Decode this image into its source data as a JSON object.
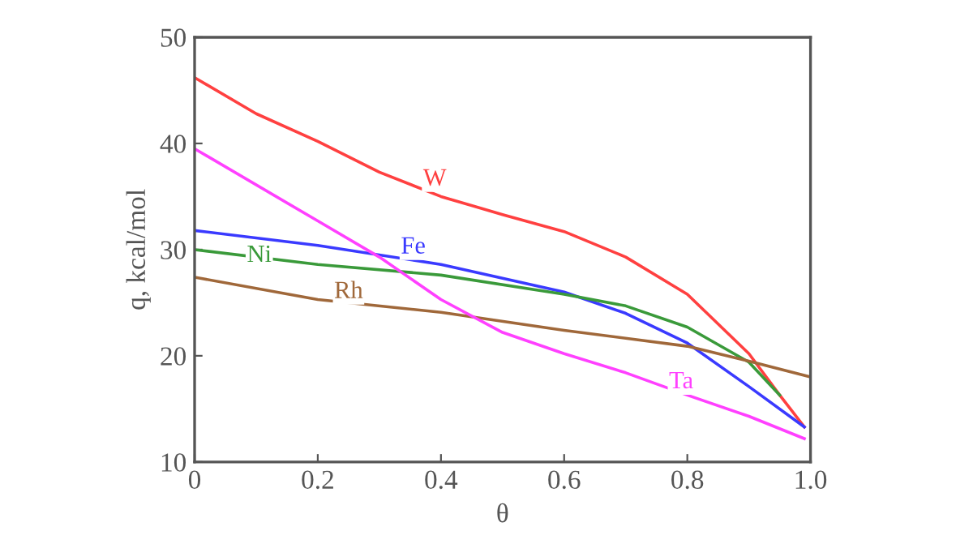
{
  "chart_data": {
    "type": "line",
    "xlabel": "θ",
    "ylabel": "q, kcal/mol",
    "xlim": [
      0,
      1.0
    ],
    "ylim": [
      10,
      50
    ],
    "xticks": [
      0,
      0.2,
      0.4,
      0.6,
      {
        "value": 0.8,
        "label": "0.8"
      },
      {
        "value": 1.0,
        "label": "1.0"
      }
    ],
    "yticks": [
      10,
      20,
      30,
      40,
      50
    ],
    "grid": false,
    "legend": false,
    "marker": "none",
    "line_style": "solid",
    "series": [
      {
        "name": "W",
        "color": "#ff4040",
        "x": [
          0,
          0.1,
          0.2,
          0.3,
          0.4,
          0.5,
          0.6,
          0.7,
          0.8,
          0.9,
          0.95,
          0.99
        ],
        "values": [
          46.2,
          42.8,
          40.2,
          37.3,
          35.0,
          33.3,
          31.7,
          29.3,
          25.8,
          20.2,
          16.3,
          13.3
        ]
      },
      {
        "name": "Fe",
        "color": "#3a3aff",
        "x": [
          0,
          0.2,
          0.4,
          0.6,
          0.7,
          0.8,
          0.9,
          0.99
        ],
        "values": [
          31.8,
          30.4,
          28.6,
          26.0,
          24.0,
          21.2,
          17.1,
          13.3
        ]
      },
      {
        "name": "Ni",
        "color": "#3a9a3a",
        "x": [
          0,
          0.2,
          0.4,
          0.6,
          0.7,
          0.8,
          0.9,
          0.95
        ],
        "values": [
          30.0,
          28.6,
          27.6,
          25.8,
          24.7,
          22.7,
          19.4,
          16.3
        ]
      },
      {
        "name": "Rh",
        "color": "#a0683a",
        "x": [
          0,
          0.2,
          0.4,
          0.6,
          0.8,
          0.9,
          1.0
        ],
        "values": [
          27.4,
          25.3,
          24.1,
          22.4,
          20.9,
          19.5,
          18.0
        ]
      },
      {
        "name": "Ta",
        "color": "#ff40ff",
        "x": [
          0,
          0.2,
          0.3,
          0.4,
          0.5,
          0.6,
          0.7,
          0.8,
          0.9,
          0.99
        ],
        "values": [
          39.5,
          32.7,
          29.3,
          25.3,
          22.2,
          20.2,
          18.4,
          16.3,
          14.3,
          12.2
        ]
      }
    ]
  }
}
